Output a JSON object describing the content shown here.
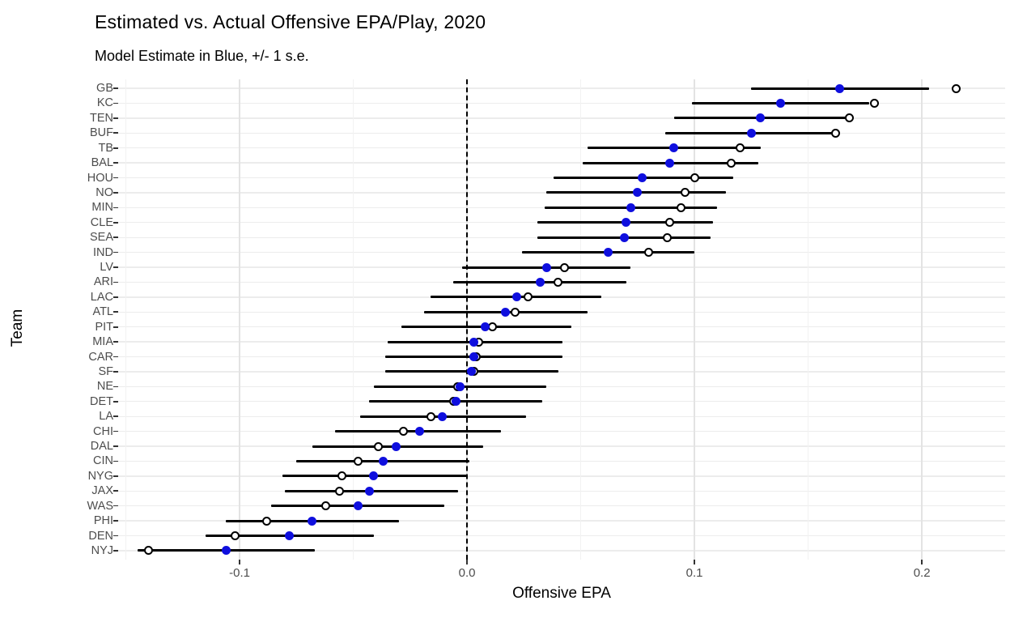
{
  "title": "Estimated vs. Actual Offensive EPA/Play, 2020",
  "subtitle": "Model Estimate in Blue, +/- 1 s.e.",
  "chart_data": {
    "type": "scatter",
    "title": "Estimated vs. Actual Offensive EPA/Play, 2020",
    "subtitle": "Model Estimate in Blue, +/- 1 s.e.",
    "xlabel": "Offensive EPA",
    "ylabel": "Team",
    "xlim": [
      -0.1534,
      0.2366
    ],
    "x_major_ticks": [
      -0.1,
      0.0,
      0.1,
      0.2
    ],
    "x_tick_labels": [
      "-0.1",
      "0.0",
      "0.1",
      "0.2"
    ],
    "x_minor_gridlines": [
      -0.15,
      -0.05,
      0.05,
      0.15
    ],
    "reference_line_x": 0.0,
    "grid": true,
    "legend_position": "none",
    "marker_legend": {
      "estimate": "blue filled dot = model estimate",
      "actual": "open circle = actual EPA",
      "bar": "+/- 1 s.e. interval"
    },
    "colors": {
      "estimate_dot": "#0F0FDE",
      "actual_circle": "#000000",
      "error_bar": "#000000",
      "reference_line": "#000000",
      "tick_text": "#4D4D4D",
      "gridline": "#E3E3E3"
    },
    "series": [
      {
        "team": "GB",
        "estimate": 0.164,
        "actual": 0.215,
        "se_low": 0.125,
        "se_high": 0.203
      },
      {
        "team": "KC",
        "estimate": 0.138,
        "actual": 0.179,
        "se_low": 0.099,
        "se_high": 0.177
      },
      {
        "team": "TEN",
        "estimate": 0.129,
        "actual": 0.168,
        "se_low": 0.091,
        "se_high": 0.168
      },
      {
        "team": "BUF",
        "estimate": 0.125,
        "actual": 0.162,
        "se_low": 0.087,
        "se_high": 0.163
      },
      {
        "team": "TB",
        "estimate": 0.091,
        "actual": 0.12,
        "se_low": 0.053,
        "se_high": 0.129
      },
      {
        "team": "BAL",
        "estimate": 0.089,
        "actual": 0.116,
        "se_low": 0.051,
        "se_high": 0.128
      },
      {
        "team": "HOU",
        "estimate": 0.077,
        "actual": 0.1,
        "se_low": 0.038,
        "se_high": 0.117
      },
      {
        "team": "NO",
        "estimate": 0.075,
        "actual": 0.096,
        "se_low": 0.035,
        "se_high": 0.114
      },
      {
        "team": "MIN",
        "estimate": 0.072,
        "actual": 0.094,
        "se_low": 0.034,
        "se_high": 0.11
      },
      {
        "team": "CLE",
        "estimate": 0.07,
        "actual": 0.089,
        "se_low": 0.031,
        "se_high": 0.108
      },
      {
        "team": "SEA",
        "estimate": 0.069,
        "actual": 0.088,
        "se_low": 0.031,
        "se_high": 0.107
      },
      {
        "team": "IND",
        "estimate": 0.062,
        "actual": 0.08,
        "se_low": 0.024,
        "se_high": 0.1
      },
      {
        "team": "LV",
        "estimate": 0.035,
        "actual": 0.043,
        "se_low": -0.002,
        "se_high": 0.072
      },
      {
        "team": "ARI",
        "estimate": 0.032,
        "actual": 0.04,
        "se_low": -0.006,
        "se_high": 0.07
      },
      {
        "team": "LAC",
        "estimate": 0.022,
        "actual": 0.027,
        "se_low": -0.016,
        "se_high": 0.059
      },
      {
        "team": "ATL",
        "estimate": 0.017,
        "actual": 0.021,
        "se_low": -0.019,
        "se_high": 0.053
      },
      {
        "team": "PIT",
        "estimate": 0.008,
        "actual": 0.011,
        "se_low": -0.029,
        "se_high": 0.046
      },
      {
        "team": "MIA",
        "estimate": 0.003,
        "actual": 0.005,
        "se_low": -0.035,
        "se_high": 0.042
      },
      {
        "team": "CAR",
        "estimate": 0.003,
        "actual": 0.004,
        "se_low": -0.036,
        "se_high": 0.042
      },
      {
        "team": "SF",
        "estimate": 0.002,
        "actual": 0.003,
        "se_low": -0.036,
        "se_high": 0.04
      },
      {
        "team": "NE",
        "estimate": -0.003,
        "actual": -0.004,
        "se_low": -0.041,
        "se_high": 0.035
      },
      {
        "team": "DET",
        "estimate": -0.005,
        "actual": -0.006,
        "se_low": -0.043,
        "se_high": 0.033
      },
      {
        "team": "LA",
        "estimate": -0.011,
        "actual": -0.016,
        "se_low": -0.047,
        "se_high": 0.026
      },
      {
        "team": "CHI",
        "estimate": -0.021,
        "actual": -0.028,
        "se_low": -0.058,
        "se_high": 0.015
      },
      {
        "team": "DAL",
        "estimate": -0.031,
        "actual": -0.039,
        "se_low": -0.068,
        "se_high": 0.007
      },
      {
        "team": "CIN",
        "estimate": -0.037,
        "actual": -0.048,
        "se_low": -0.075,
        "se_high": 0.001
      },
      {
        "team": "NYG",
        "estimate": -0.041,
        "actual": -0.055,
        "se_low": -0.081,
        "se_high": 0.0
      },
      {
        "team": "JAX",
        "estimate": -0.043,
        "actual": -0.056,
        "se_low": -0.08,
        "se_high": -0.004
      },
      {
        "team": "WAS",
        "estimate": -0.048,
        "actual": -0.062,
        "se_low": -0.086,
        "se_high": -0.01
      },
      {
        "team": "PHI",
        "estimate": -0.068,
        "actual": -0.088,
        "se_low": -0.106,
        "se_high": -0.03
      },
      {
        "team": "DEN",
        "estimate": -0.078,
        "actual": -0.102,
        "se_low": -0.115,
        "se_high": -0.041
      },
      {
        "team": "NYJ",
        "estimate": -0.106,
        "actual": -0.14,
        "se_low": -0.145,
        "se_high": -0.067
      }
    ]
  }
}
